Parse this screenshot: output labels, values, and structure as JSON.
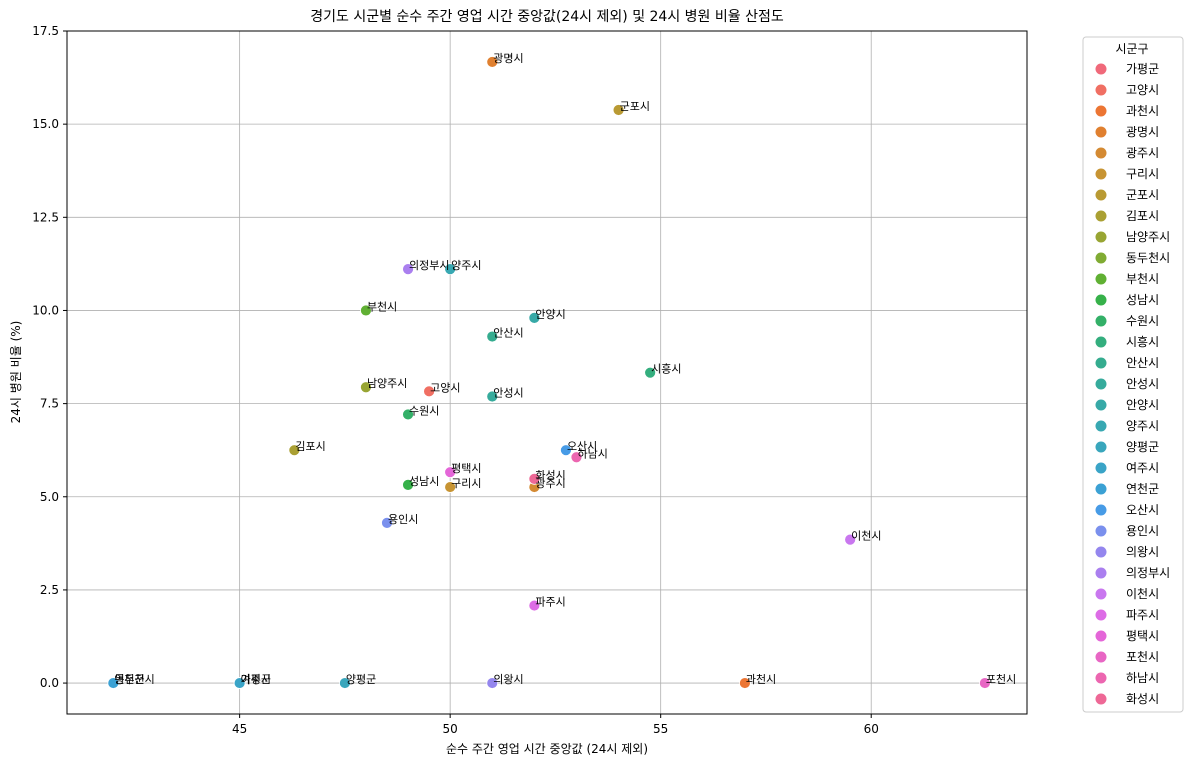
{
  "chart_data": {
    "type": "scatter",
    "title": "경기도 시군별 순수 주간 영업 시간 중앙값(24시 제외) 및 24시 병원 비율 산점도",
    "xlabel": "순수 주간 영업 시간 중앙값 (24시 제외)",
    "ylabel": "24시 병원 비율 (%)",
    "xlim": [
      40.9,
      63.7
    ],
    "ylim": [
      -0.83,
      17.5
    ],
    "xticks": [
      45,
      50,
      55,
      60
    ],
    "xtick_labels": [
      "45",
      "50",
      "55",
      "60"
    ],
    "yticks": [
      0,
      2.5,
      5,
      7.5,
      10,
      12.5,
      15,
      17.5
    ],
    "ytick_labels": [
      "0.0",
      "2.5",
      "5.0",
      "7.5",
      "10.0",
      "12.5",
      "15.0",
      "17.5"
    ],
    "grid": true,
    "legend": {
      "title": "시군구",
      "placement": "outside-right"
    },
    "series": [
      {
        "name": "가평군",
        "color": "#f0697a",
        "x": 45.0,
        "y": 0.0
      },
      {
        "name": "고양시",
        "color": "#f06f63",
        "x": 49.5,
        "y": 7.83
      },
      {
        "name": "과천시",
        "color": "#ec7533",
        "x": 57.0,
        "y": 0.0
      },
      {
        "name": "광명시",
        "color": "#e08030",
        "x": 51.0,
        "y": 16.67
      },
      {
        "name": "광주시",
        "color": "#d48a33",
        "x": 52.0,
        "y": 5.26
      },
      {
        "name": "구리시",
        "color": "#c79433",
        "x": 50.0,
        "y": 5.26
      },
      {
        "name": "군포시",
        "color": "#b99a33",
        "x": 54.0,
        "y": 15.38
      },
      {
        "name": "김포시",
        "color": "#aaa033",
        "x": 46.3,
        "y": 6.25
      },
      {
        "name": "남양주시",
        "color": "#98a533",
        "x": 48.0,
        "y": 7.94
      },
      {
        "name": "동두천시",
        "color": "#80ab33",
        "x": 42.0,
        "y": 0.0
      },
      {
        "name": "부천시",
        "color": "#60b033",
        "x": 48.0,
        "y": 10.0
      },
      {
        "name": "성남시",
        "color": "#36b14a",
        "x": 49.0,
        "y": 5.32
      },
      {
        "name": "수원시",
        "color": "#33b068",
        "x": 49.0,
        "y": 7.21
      },
      {
        "name": "시흥시",
        "color": "#34ae7e",
        "x": 54.75,
        "y": 8.33
      },
      {
        "name": "안산시",
        "color": "#35ac8f",
        "x": 51.0,
        "y": 9.3
      },
      {
        "name": "안성시",
        "color": "#36ab9c",
        "x": 51.0,
        "y": 7.69
      },
      {
        "name": "안양시",
        "color": "#37a9a7",
        "x": 52.0,
        "y": 9.8
      },
      {
        "name": "양주시",
        "color": "#38a8b2",
        "x": 50.0,
        "y": 11.11
      },
      {
        "name": "양평군",
        "color": "#39a6bc",
        "x": 47.5,
        "y": 0.0
      },
      {
        "name": "여주시",
        "color": "#3aa4c7",
        "x": 45.0,
        "y": 0.0
      },
      {
        "name": "연천군",
        "color": "#3ba1d4",
        "x": 42.0,
        "y": 0.0
      },
      {
        "name": "오산시",
        "color": "#479be6",
        "x": 52.75,
        "y": 6.25
      },
      {
        "name": "용인시",
        "color": "#7a90ed",
        "x": 48.5,
        "y": 4.3
      },
      {
        "name": "의왕시",
        "color": "#9486ee",
        "x": 51.0,
        "y": 0.0
      },
      {
        "name": "의정부시",
        "color": "#aa7fef",
        "x": 49.0,
        "y": 11.11
      },
      {
        "name": "이천시",
        "color": "#c977ef",
        "x": 59.5,
        "y": 3.85
      },
      {
        "name": "파주시",
        "color": "#dd6ce6",
        "x": 52.0,
        "y": 2.08
      },
      {
        "name": "평택시",
        "color": "#e466d8",
        "x": 50.0,
        "y": 5.66
      },
      {
        "name": "포천시",
        "color": "#e866c4",
        "x": 62.7,
        "y": 0.0
      },
      {
        "name": "하남시",
        "color": "#ec66b0",
        "x": 53.0,
        "y": 6.06
      },
      {
        "name": "화성시",
        "color": "#ee6896",
        "x": 52.0,
        "y": 5.48
      }
    ]
  }
}
